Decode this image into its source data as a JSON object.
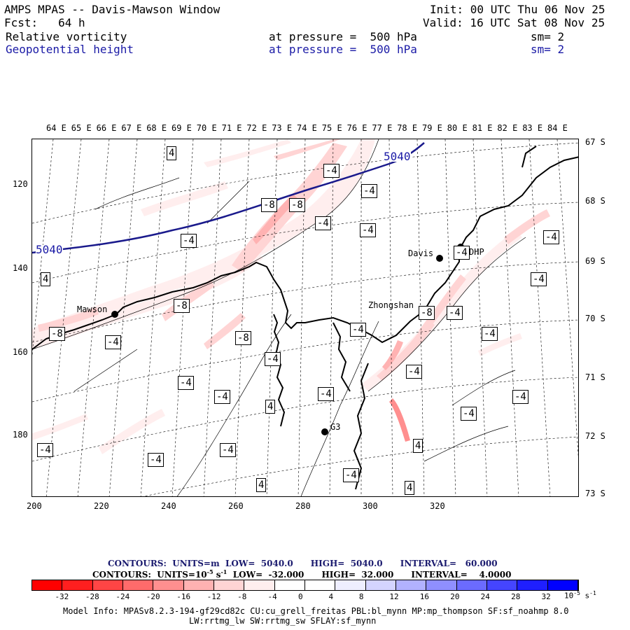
{
  "header": {
    "line1_left": "AMPS MPAS -- Davis-Mawson Window",
    "line1_right": "Init: 00 UTC Thu 06 Nov 25",
    "line2_left": "Fcst:   64 h",
    "line2_right": "Valid: 16 UTC Sat 08 Nov 25",
    "field1_name": "Relative vorticity",
    "field1_level": "at pressure =  500 hPa",
    "field1_sm": "sm= 2",
    "field2_name": "Geopotential height",
    "field2_level": "at pressure =  500 hPa",
    "field2_sm": "sm= 2"
  },
  "map": {
    "top_lon_labels": [
      "64 E",
      "65 E",
      "66 E",
      "67 E",
      "68 E",
      "69 E",
      "70 E",
      "71 E",
      "72 E",
      "73 E",
      "74 E",
      "75 E",
      "76 E",
      "77 E",
      "78 E",
      "79 E",
      "80 E",
      "81 E",
      "82 E",
      "83 E",
      "84 E"
    ],
    "right_lat_labels": [
      "67 S",
      "68 S",
      "69 S",
      "70 S",
      "71 S",
      "72 S",
      "73 S"
    ],
    "left_y_ticks": [
      "120",
      "140",
      "160",
      "180"
    ],
    "bottom_x_ticks": [
      "200",
      "220",
      "240",
      "260",
      "280",
      "300",
      "320"
    ],
    "stations": {
      "mawson": "Mawson",
      "davis": "Davis",
      "zhongshan": "Zhongshan",
      "g3": "G3",
      "dhp": "DHP"
    },
    "height_contour_label": "5040",
    "vort_labels": {
      "neg4": "-4",
      "neg8": "-8",
      "pos4": "4"
    }
  },
  "legend": {
    "contours1": "CONTOURS:  UNITS=m  LOW=  5040.0      HIGH=  5040.0      INTERVAL=   60.000",
    "contours2_prefix": "CONTOURS:  UNITS=10",
    "contours2_exp": "-5",
    "contours2_mid": " s",
    "contours2_exp2": "-1",
    "contours2_rest": "  LOW=  -32.000      HIGH=  32.000      INTERVAL=    4.0000",
    "colors": [
      "#ff0000",
      "#ff1f1f",
      "#ff4545",
      "#ff6b6b",
      "#ff8f8f",
      "#ffb2b2",
      "#ffd4d4",
      "#ffeeee",
      "#ffffff",
      "#ffffff",
      "#eeeeff",
      "#d4d4ff",
      "#b2b2ff",
      "#8f8fff",
      "#6b6bff",
      "#4545ff",
      "#1f1fff",
      "#0000ff"
    ],
    "tick_labels": [
      "-32",
      "-28",
      "-24",
      "-20",
      "-16",
      "-12",
      "-8",
      "-4",
      "0",
      "4",
      "8",
      "12",
      "16",
      "20",
      "24",
      "28",
      "32"
    ],
    "unit_base": "10",
    "unit_exp": "-5",
    "unit_s": "s",
    "unit_s_exp": "-1"
  },
  "footer": {
    "model_info": "Model Info: MPASv8.2.3-194-gf29cd82c CU:cu_grell_freitas PBL:bl_mynn MP:mp_thompson SF:sf_noahmp 8.0",
    "physics": "LW:rrtmg_lw SW:rrtmg_sw SFLAY:sf_mynn"
  }
}
